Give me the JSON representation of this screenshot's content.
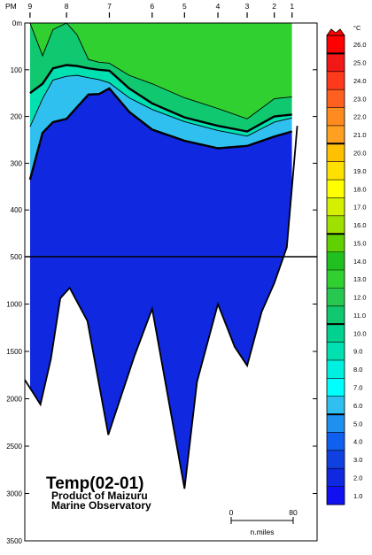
{
  "chart_data": {
    "type": "heatmap",
    "title": "Temp(02-01)",
    "credit_line1": "Product of Maizuru",
    "credit_line2": "Marine Observatory",
    "x_axis_label": "PM",
    "station_labels": [
      {
        "label": "9",
        "dist": 0
      },
      {
        "label": "8",
        "dist": 35
      },
      {
        "label": "7",
        "dist": 76
      },
      {
        "label": "6",
        "dist": 117
      },
      {
        "label": "5",
        "dist": 148
      },
      {
        "label": "4",
        "dist": 180
      },
      {
        "label": "3",
        "dist": 208
      },
      {
        "label": "2",
        "dist": 234
      },
      {
        "label": "1",
        "dist": 251
      }
    ],
    "x_range_nmiles": [
      -5,
      275
    ],
    "y_axis": {
      "ticks": [
        {
          "label": "0m",
          "depth": 0
        },
        {
          "label": "100",
          "depth": 100
        },
        {
          "label": "200",
          "depth": 200
        },
        {
          "label": "300",
          "depth": 300
        },
        {
          "label": "400",
          "depth": 400
        },
        {
          "label": "500",
          "depth": 500
        },
        {
          "label": "1000",
          "depth": 1000
        },
        {
          "label": "1500",
          "depth": 1500
        },
        {
          "label": "2000",
          "depth": 2000
        },
        {
          "label": "2500",
          "depth": 2500
        },
        {
          "label": "3000",
          "depth": 3000
        },
        {
          "label": "3500",
          "depth": 3500
        }
      ],
      "upper_range_m": [
        0,
        500
      ],
      "lower_range_m": [
        500,
        3500
      ],
      "break_depth_m": 500
    },
    "colorbar": {
      "unit": "°C",
      "levels": [
        26.0,
        25.0,
        24.0,
        23.0,
        22.0,
        21.0,
        20.0,
        19.0,
        18.0,
        17.0,
        16.0,
        15.0,
        14.0,
        13.0,
        12.0,
        11.0,
        10.0,
        9.0,
        8.0,
        7.0,
        6.0,
        5.0,
        4.0,
        3.0,
        2.0,
        1.0
      ],
      "colors": [
        "#ff0000",
        "#f21818",
        "#ff3a1c",
        "#ff6020",
        "#ff8a20",
        "#ffa020",
        "#ffc000",
        "#ffe000",
        "#ffff00",
        "#d4f000",
        "#a0e000",
        "#60d000",
        "#20c020",
        "#30d030",
        "#28c850",
        "#10c870",
        "#00d090",
        "#00e0b0",
        "#00f0e0",
        "#00ffff",
        "#30c0f0",
        "#1e90f0",
        "#1060f0",
        "#1040e0",
        "#1028e0",
        "#1010f0"
      ],
      "bold_levels": [
        25.0,
        20.0,
        15.0,
        10.0,
        5.0
      ]
    },
    "isotherms_depth_m": [
      {
        "temp": 5,
        "dist": [
          0,
          12,
          22,
          35,
          45,
          56,
          66,
          76,
          95,
          117,
          148,
          180,
          208,
          234,
          251
        ],
        "depth": [
          335,
          235,
          212,
          205,
          180,
          153,
          152,
          140,
          190,
          228,
          252,
          268,
          263,
          243,
          232
        ]
      },
      {
        "temp": 8,
        "dist": [
          0,
          12,
          22,
          35,
          45,
          56,
          66,
          76,
          95,
          117,
          148,
          180,
          208,
          234,
          251
        ],
        "depth": [
          222,
          162,
          122,
          114,
          112,
          117,
          121,
          128,
          160,
          185,
          211,
          230,
          242,
          212,
          203
        ]
      },
      {
        "temp": 10,
        "dist": [
          0,
          12,
          22,
          35,
          45,
          56,
          66,
          76,
          95,
          117,
          148,
          180,
          208,
          234,
          251
        ],
        "depth": [
          150,
          130,
          97,
          90,
          92,
          97,
          100,
          102,
          140,
          172,
          202,
          220,
          232,
          200,
          196
        ]
      },
      {
        "temp": 13,
        "dist": [
          0,
          12,
          22,
          35,
          45,
          56,
          66,
          76,
          95,
          117,
          148,
          180,
          208,
          234,
          251
        ],
        "depth": [
          0,
          70,
          14,
          0,
          25,
          78,
          84,
          86,
          112,
          130,
          160,
          183,
          205,
          162,
          158
        ]
      }
    ],
    "bottom_profile": {
      "dist": [
        -5,
        10,
        20,
        29,
        38,
        55,
        75,
        100,
        117,
        148,
        160,
        180,
        196,
        208,
        222,
        234,
        246,
        256
      ],
      "depth": [
        1800,
        2060,
        1580,
        940,
        830,
        1180,
        2380,
        1550,
        1050,
        2950,
        1820,
        1000,
        1450,
        1650,
        1080,
        780,
        480,
        220
      ]
    }
  }
}
